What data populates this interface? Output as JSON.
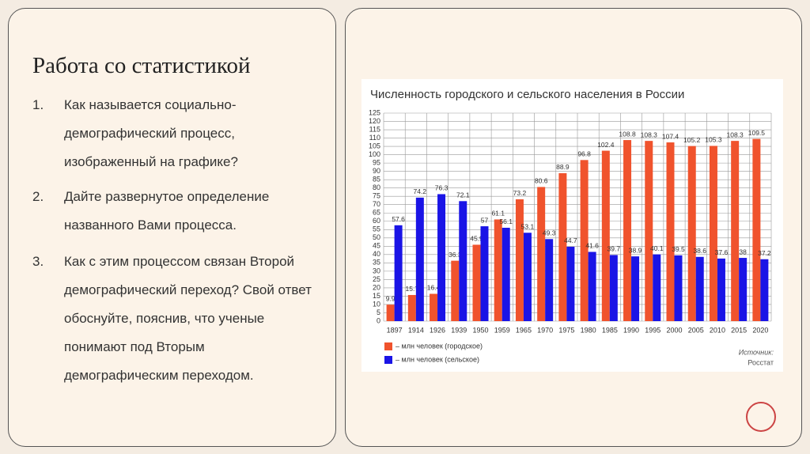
{
  "slide": {
    "title": "Работа со статистикой",
    "questions": [
      {
        "number": "1.",
        "text": "Как называется социально-демографический процесс, изображенный на графике?"
      },
      {
        "number": "2.",
        "text": "Дайте развернутое определение названного Вами процесса."
      },
      {
        "number": "3.",
        "text": "Как с этим процессом связан Второй демографический переход? Свой ответ обоснуйте, пояснив, что ученые понимают под Вторым демографическим переходом."
      }
    ]
  },
  "chart_data": {
    "type": "bar",
    "title": "Численность городского и сельского населения в России",
    "categories": [
      "1897",
      "1914",
      "1926",
      "1939",
      "1950",
      "1959",
      "1965",
      "1970",
      "1975",
      "1980",
      "1985",
      "1990",
      "1995",
      "2000",
      "2005",
      "2010",
      "2015",
      "2020"
    ],
    "series": [
      {
        "name": "– млн человек (городское)",
        "color": "#f0532d",
        "values": [
          9.9,
          15.7,
          16.4,
          36.3,
          45.9,
          61.1,
          73.2,
          80.6,
          88.9,
          96.8,
          102.4,
          108.8,
          108.3,
          107.4,
          105.2,
          105.3,
          108.3,
          109.5
        ]
      },
      {
        "name": "– млн человек (сельское)",
        "color": "#1a14e6",
        "values": [
          57.6,
          74.2,
          76.3,
          72.1,
          57,
          56.1,
          53.1,
          49.3,
          44.7,
          41.6,
          39.7,
          38.9,
          40.1,
          39.5,
          38.6,
          37.6,
          38,
          37.2
        ]
      }
    ],
    "ylim": [
      0,
      125
    ],
    "yticks": [
      0,
      5,
      10,
      15,
      20,
      25,
      30,
      35,
      40,
      45,
      50,
      55,
      60,
      65,
      70,
      75,
      80,
      85,
      90,
      95,
      100,
      105,
      110,
      115,
      120,
      125
    ],
    "grid": true,
    "source": [
      "Источник:",
      "Росстат"
    ]
  }
}
